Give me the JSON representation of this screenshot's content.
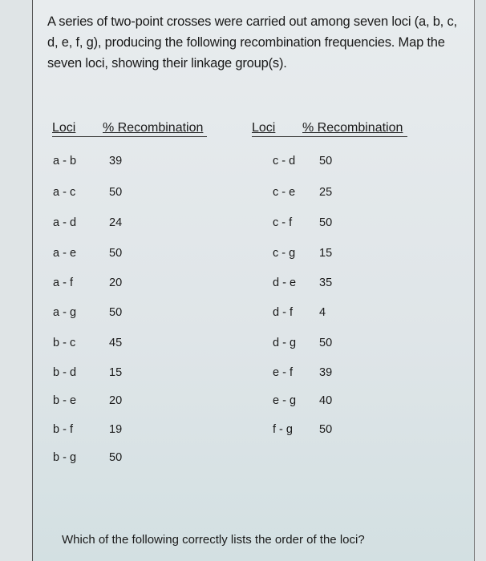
{
  "intro": "A series of two-point crosses were carried out among seven loci (a, b, c, d, e, f, g), producing the following recombination frequencies. Map the seven loci, showing their linkage group(s).",
  "table_left": {
    "headers": [
      "Loci",
      "% Recombination"
    ],
    "rows": [
      [
        "a - b",
        "39"
      ],
      [
        "a - c",
        "50"
      ],
      [
        "a - d",
        "24"
      ],
      [
        "a - e",
        "50"
      ],
      [
        "a - f",
        "20"
      ],
      [
        "a - g",
        "50"
      ],
      [
        "b - c",
        "45"
      ],
      [
        "b - d",
        "15"
      ],
      [
        "b - e",
        "20"
      ],
      [
        "b - f",
        "19"
      ],
      [
        "b - g",
        "50"
      ]
    ]
  },
  "table_right": {
    "headers": [
      "Loci",
      "% Recombination"
    ],
    "rows": [
      [
        "c - d",
        "50"
      ],
      [
        "c - e",
        "25"
      ],
      [
        "c - f",
        "50"
      ],
      [
        "c - g",
        "15"
      ],
      [
        "d - e",
        "35"
      ],
      [
        "d - f",
        "4"
      ],
      [
        "d - g",
        "50"
      ],
      [
        "e - f",
        "39"
      ],
      [
        "e - g",
        "40"
      ],
      [
        "f - g",
        "50"
      ]
    ]
  },
  "question": "Which of the following correctly lists the order of the loci?"
}
